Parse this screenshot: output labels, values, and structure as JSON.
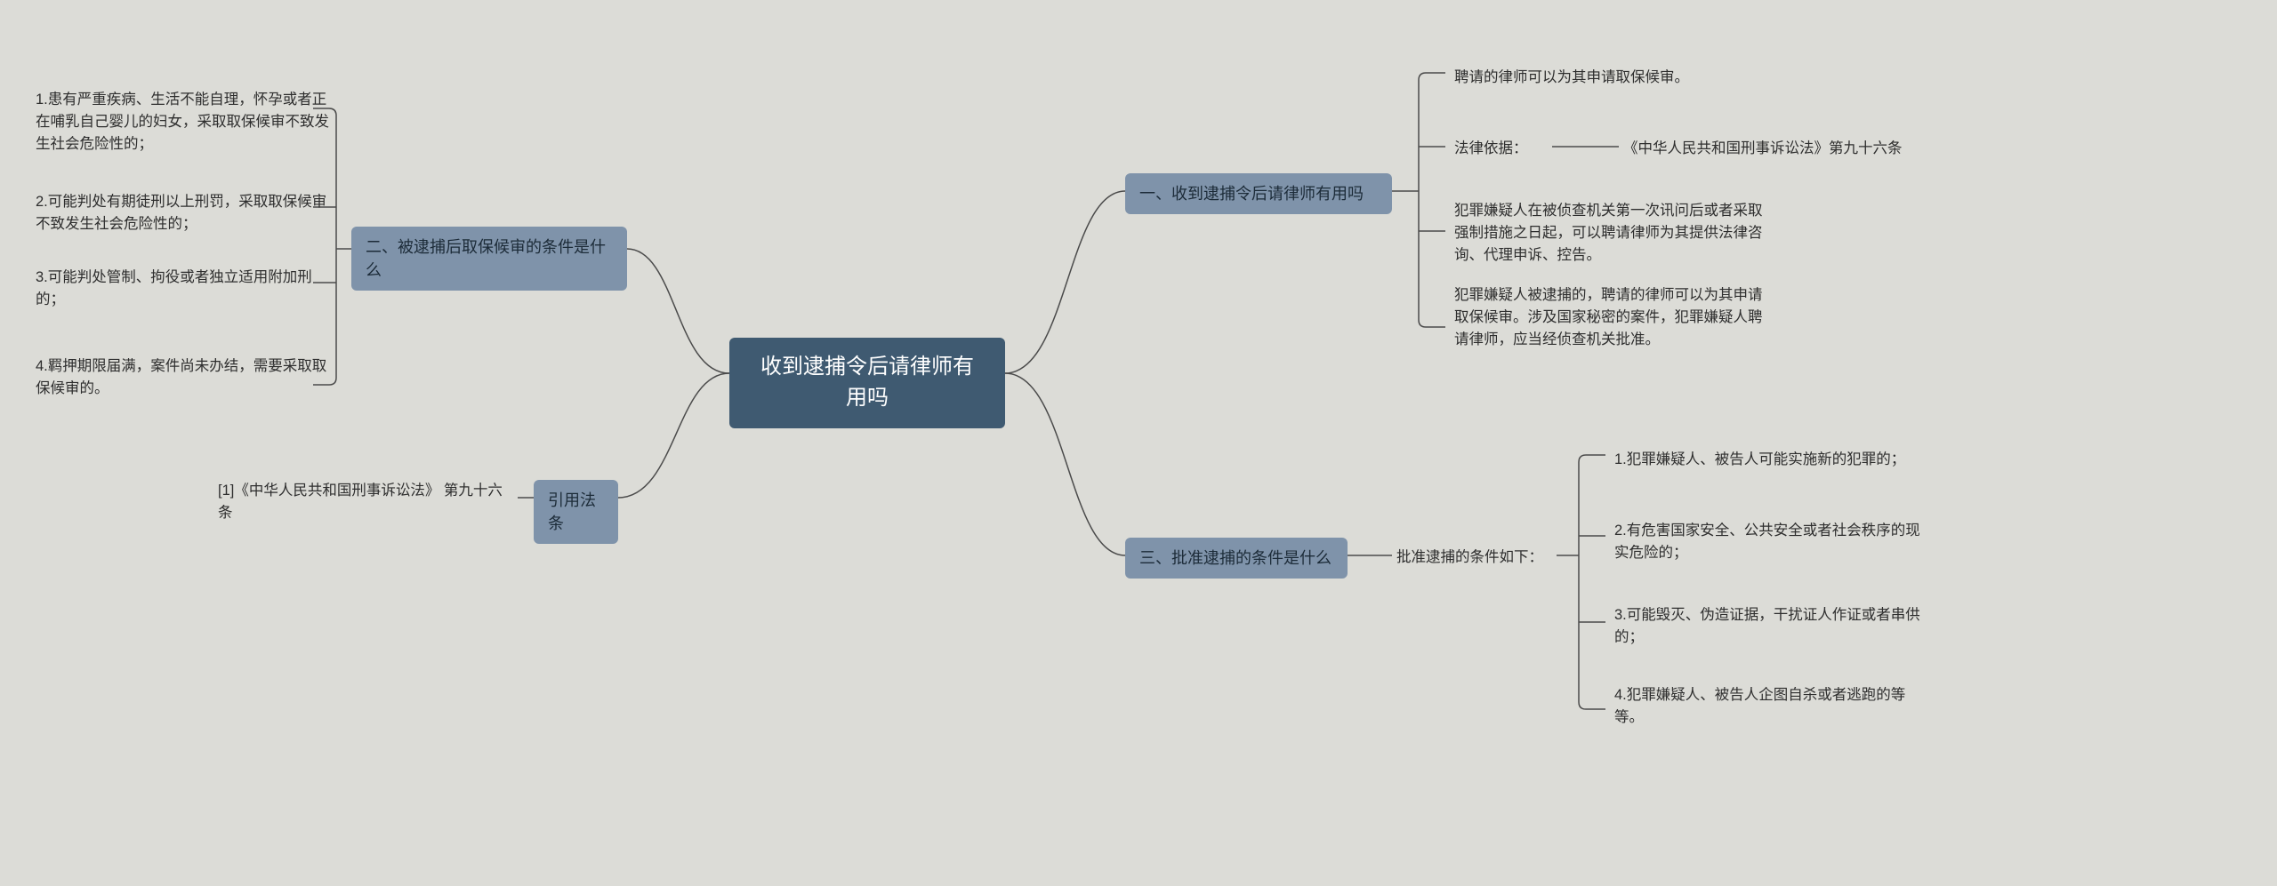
{
  "colors": {
    "background": "#dcdcd7",
    "root_bg": "#3f5a71",
    "root_fg": "#ffffff",
    "branch_bg": "#7f93aa",
    "branch_fg": "#1c2b38",
    "leaf_fg": "#2e2e2e",
    "connector": "#4b4b4b"
  },
  "root": {
    "label": "收到逮捕令后请律师有用吗"
  },
  "right": {
    "b1": {
      "label": "一、收到逮捕令后请律师有用吗",
      "leaves": {
        "l1": "聘请的律师可以为其申请取保候审。",
        "l2": "法律依据：",
        "l2b": "《中华人民共和国刑事诉讼法》第九十六条",
        "l3": "犯罪嫌疑人在被侦查机关第一次讯问后或者采取强制措施之日起，可以聘请律师为其提供法律咨询、代理申诉、控告。",
        "l4": "犯罪嫌疑人被逮捕的，聘请的律师可以为其申请取保候审。涉及国家秘密的案件，犯罪嫌疑人聘请律师，应当经侦查机关批准。"
      }
    },
    "b3": {
      "label": "三、批准逮捕的条件是什么",
      "mid": "批准逮捕的条件如下：",
      "leaves": {
        "l1": "1.犯罪嫌疑人、被告人可能实施新的犯罪的；",
        "l2": "2.有危害国家安全、公共安全或者社会秩序的现实危险的；",
        "l3": "3.可能毁灭、伪造证据，干扰证人作证或者串供的；",
        "l4": "4.犯罪嫌疑人、被告人企图自杀或者逃跑的等等。"
      }
    }
  },
  "left": {
    "b2": {
      "label": "二、被逮捕后取保候审的条件是什么",
      "leaves": {
        "l1": "1.患有严重疾病、生活不能自理，怀孕或者正在哺乳自己婴儿的妇女，采取取保候审不致发生社会危险性的；",
        "l2": "2.可能判处有期徒刑以上刑罚，采取取保候审不致发生社会危险性的；",
        "l3": "3.可能判处管制、拘役或者独立适用附加刑的；",
        "l4": "4.羁押期限届满，案件尚未办结，需要采取取保候审的。"
      }
    },
    "b4": {
      "label": "引用法条",
      "leaves": {
        "l1": "[1]《中华人民共和国刑事诉讼法》 第九十六条"
      }
    }
  }
}
